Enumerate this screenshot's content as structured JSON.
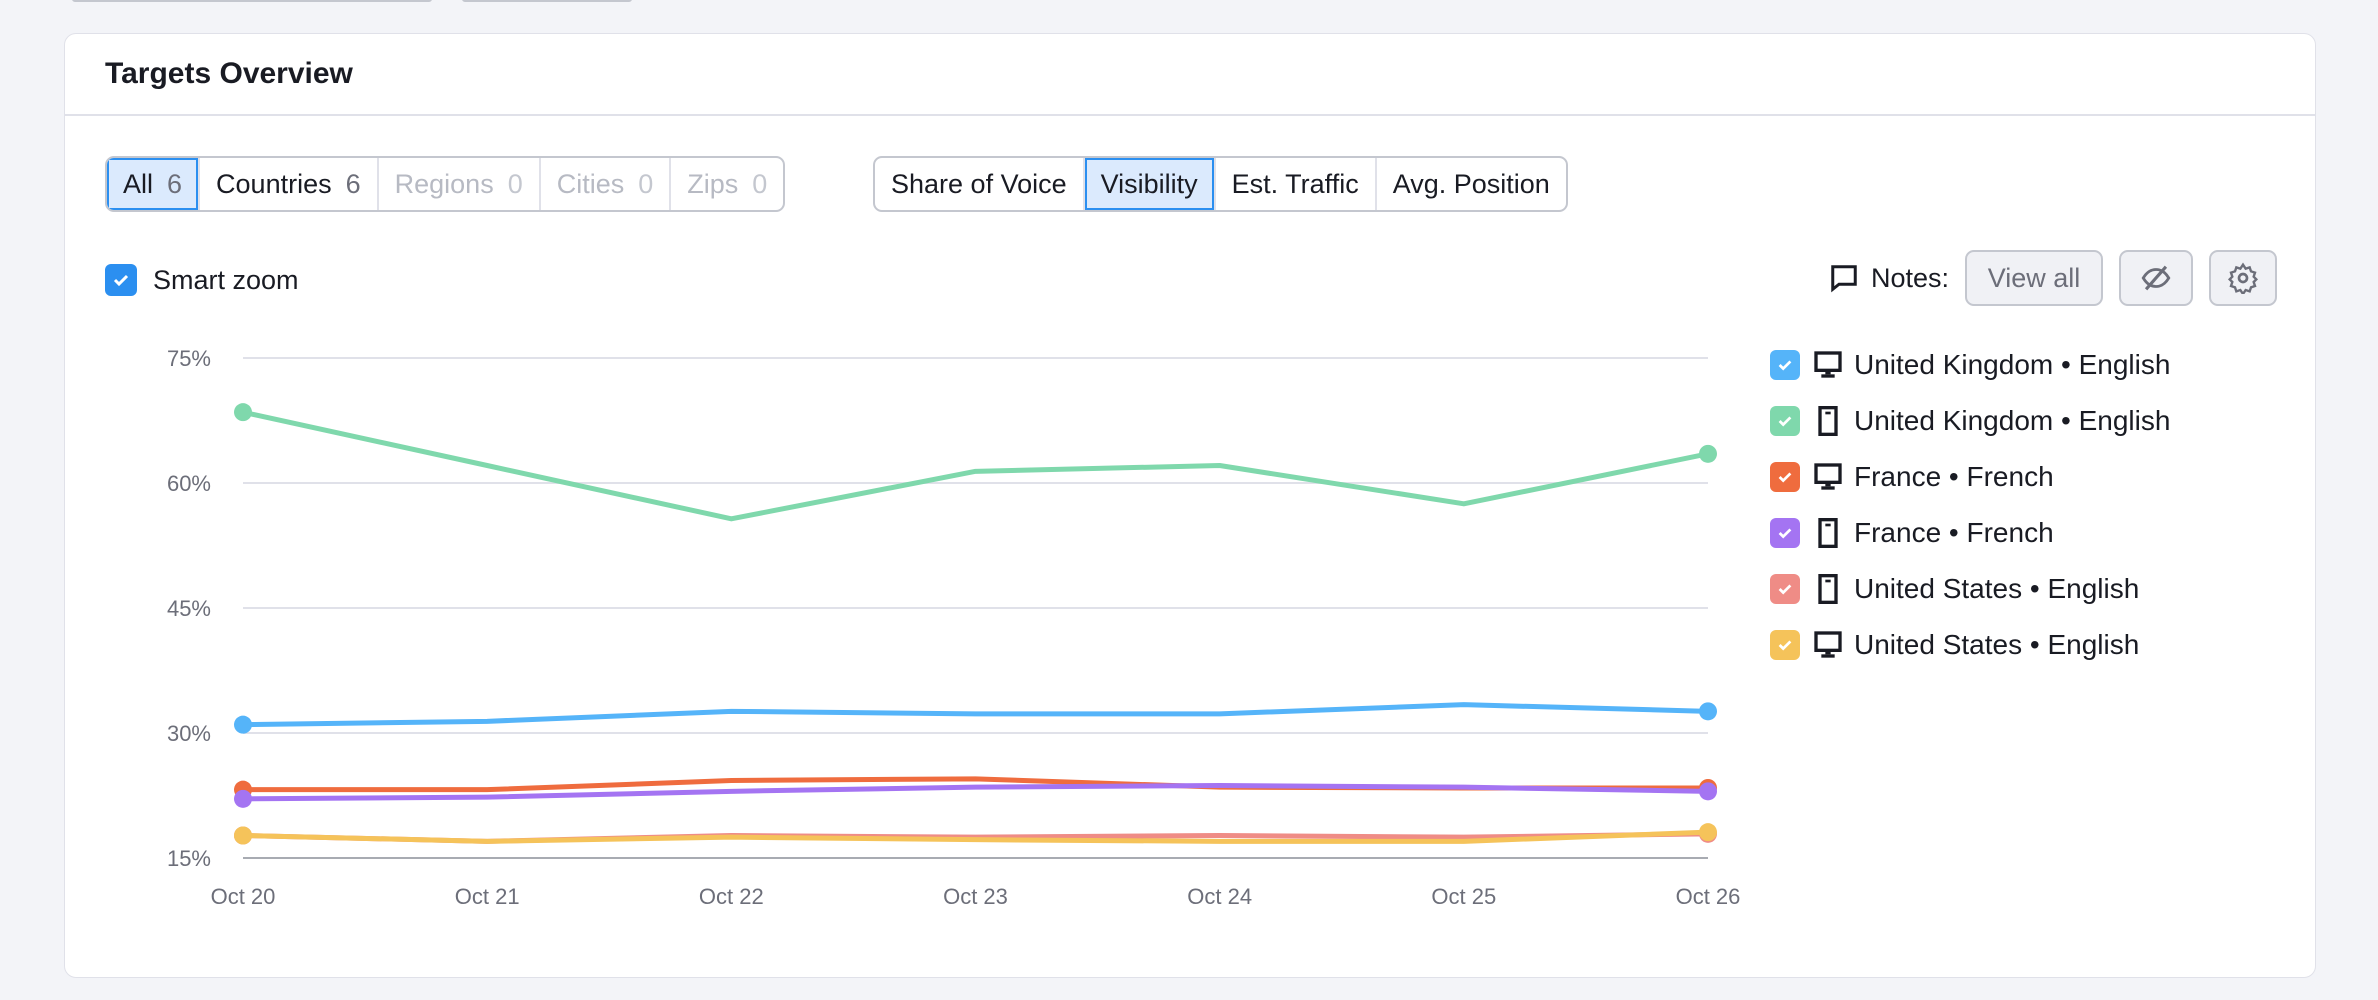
{
  "card": {
    "title": "Targets Overview"
  },
  "location_filters": [
    {
      "label": "All",
      "count": "6",
      "state": "active"
    },
    {
      "label": "Countries",
      "count": "6",
      "state": "normal"
    },
    {
      "label": "Regions",
      "count": "0",
      "state": "disabled"
    },
    {
      "label": "Cities",
      "count": "0",
      "state": "disabled"
    },
    {
      "label": "Zips",
      "count": "0",
      "state": "disabled"
    }
  ],
  "metric_tabs": [
    {
      "label": "Share of Voice",
      "state": "normal"
    },
    {
      "label": "Visibility",
      "state": "active"
    },
    {
      "label": "Est. Traffic",
      "state": "normal"
    },
    {
      "label": "Avg. Position",
      "state": "normal"
    }
  ],
  "smart_zoom": {
    "label": "Smart zoom",
    "checked": true
  },
  "notes": {
    "label": "Notes:",
    "view_all": "View all",
    "icons": [
      "comment-icon",
      "eye-off-icon",
      "gear-icon"
    ]
  },
  "colors": {
    "accent": "#2b8ff0"
  },
  "chart_data": {
    "type": "line",
    "x": [
      "Oct 20",
      "Oct 21",
      "Oct 22",
      "Oct 23",
      "Oct 24",
      "Oct 25",
      "Oct 26"
    ],
    "ylim": [
      15,
      75
    ],
    "yticks": [
      "75%",
      "60%",
      "45%",
      "30%",
      "15%"
    ],
    "ytick_values": [
      75,
      60,
      45,
      30,
      15
    ],
    "grid": true,
    "legend_position": "right",
    "series": [
      {
        "name": "United Kingdom • English",
        "device": "desktop",
        "color": "#55b4f9",
        "values": [
          31.0,
          31.4,
          32.6,
          32.3,
          32.3,
          33.4,
          32.6
        ]
      },
      {
        "name": "United Kingdom • English",
        "device": "mobile",
        "color": "#7fd8ac",
        "values": [
          68.5,
          62.1,
          55.7,
          61.4,
          62.1,
          57.5,
          63.5
        ]
      },
      {
        "name": "France • French",
        "device": "desktop",
        "color": "#ef6c3e",
        "values": [
          23.2,
          23.2,
          24.3,
          24.5,
          23.5,
          23.4,
          23.4
        ]
      },
      {
        "name": "France • French",
        "device": "mobile",
        "color": "#a474f2",
        "values": [
          22.1,
          22.3,
          23.0,
          23.5,
          23.7,
          23.5,
          23.0
        ]
      },
      {
        "name": "United States • English",
        "device": "mobile",
        "color": "#ef8c86",
        "values": [
          17.7,
          17.0,
          17.7,
          17.5,
          17.7,
          17.5,
          17.9
        ]
      },
      {
        "name": "United States • English",
        "device": "desktop",
        "color": "#f5c35a",
        "values": [
          17.7,
          17.0,
          17.5,
          17.2,
          17.0,
          17.0,
          18.1
        ]
      }
    ]
  }
}
